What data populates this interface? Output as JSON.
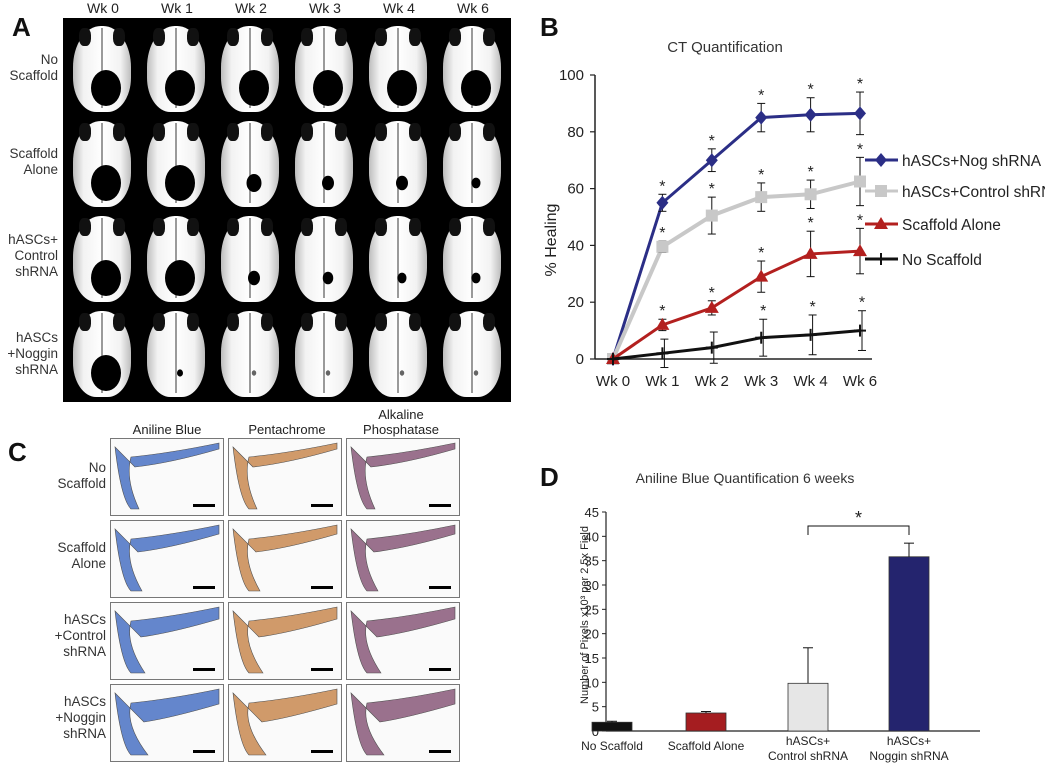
{
  "panel_labels": {
    "a": "A",
    "b": "B",
    "c": "C",
    "d": "D"
  },
  "panel_a": {
    "columns": [
      "Wk 0",
      "Wk 1",
      "Wk 2",
      "Wk 3",
      "Wk 4",
      "Wk 6"
    ],
    "rows": [
      "No\nScaffold",
      "Scaffold\nAlone",
      "hASCs+\nControl\nshRNA",
      "hASCs\n+Noggin\nshRNA"
    ],
    "defect_remaining": [
      [
        1,
        1,
        1,
        1,
        1,
        1
      ],
      [
        1,
        1,
        0.5,
        0.4,
        0.4,
        0.3
      ],
      [
        1,
        1,
        0.4,
        0.35,
        0.3,
        0.3
      ],
      [
        1,
        0.2,
        0.1,
        0.05,
        0.05,
        0.05
      ]
    ]
  },
  "panel_c": {
    "columns": [
      "Aniline Blue",
      "Pentachrome",
      "Alkaline\nPhosphatase"
    ],
    "rows": [
      "No\nScaffold",
      "Scaffold\nAlone",
      "hASCs\n+Control\nshRNA",
      "hASCs\n+Noggin\nshRNA"
    ],
    "stain_colors": [
      "#4a72c4",
      "#c98a52",
      "#8a5a7a"
    ]
  },
  "chart_data": [
    {
      "type": "line",
      "title": "CT Quantification",
      "xlabel": "",
      "ylabel": "% Healing",
      "categories": [
        "Wk 0",
        "Wk 1",
        "Wk 2",
        "Wk 3",
        "Wk 4",
        "Wk 6"
      ],
      "ylim": [
        0,
        100
      ],
      "yticks": [
        "0",
        "20",
        "40",
        "60",
        "80",
        "100"
      ],
      "significance_mark": "*",
      "series": [
        {
          "name": "hASCs+Nog shRNA",
          "color": "#2b2e86",
          "marker": "diamond",
          "values": [
            0,
            55,
            70,
            85,
            86,
            86.5
          ],
          "errors": [
            0,
            3,
            4,
            5,
            6,
            7.5
          ]
        },
        {
          "name": "hASCs+Control shRNA",
          "color": "#c8c8c8",
          "marker": "square",
          "values": [
            0,
            39.5,
            50.5,
            57,
            58,
            62.5
          ],
          "errors": [
            0,
            2,
            6.5,
            5,
            5,
            8.5
          ]
        },
        {
          "name": "Scaffold Alone",
          "color": "#b3201f",
          "marker": "triangle",
          "values": [
            0,
            12,
            18,
            29,
            37,
            38
          ],
          "errors": [
            0,
            2,
            2.5,
            5.5,
            8,
            8
          ]
        },
        {
          "name": "No Scaffold",
          "color": "#111111",
          "marker": "plus",
          "values": [
            0,
            2,
            4,
            7.5,
            8.5,
            10
          ],
          "errors": [
            0,
            5,
            5.5,
            6.5,
            7,
            7
          ]
        }
      ]
    },
    {
      "type": "bar",
      "title": "Aniline Blue Quantification 6 weeks",
      "xlabel": "",
      "ylabel": "Number of Pixels x10³ per 2.5x Field",
      "categories": [
        "No Scaffold",
        "Scaffold Alone",
        "hASCs+\nControl shRNA",
        "hASCs+\nNoggin shRNA"
      ],
      "values": [
        1.8,
        3.7,
        9.8,
        35.8
      ],
      "errors": [
        0.2,
        0.3,
        7.3,
        2.8
      ],
      "colors": [
        "#111111",
        "#a51d20",
        "#e6e6e6",
        "#24246e"
      ],
      "ylim": [
        0,
        45
      ],
      "yticks": [
        "0",
        "5",
        "10",
        "15",
        "20",
        "25",
        "30",
        "35",
        "40",
        "45"
      ],
      "significance": {
        "between": [
          2,
          3
        ],
        "label": "*"
      }
    }
  ]
}
